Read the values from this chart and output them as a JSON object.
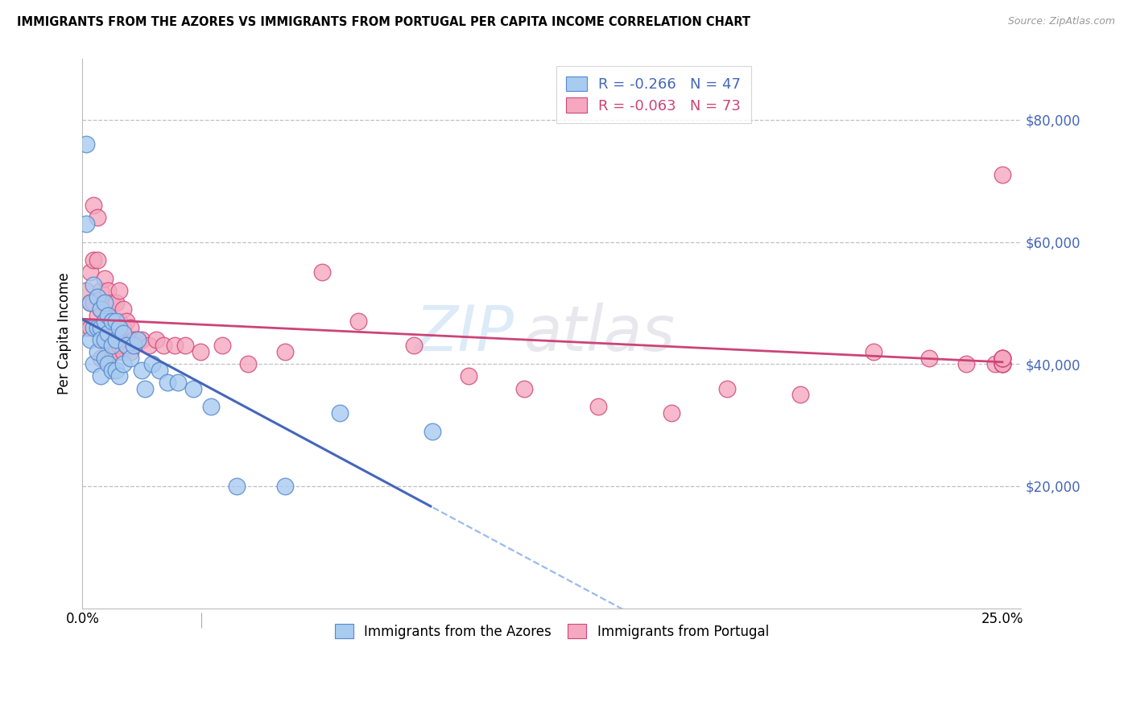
{
  "title": "IMMIGRANTS FROM THE AZORES VS IMMIGRANTS FROM PORTUGAL PER CAPITA INCOME CORRELATION CHART",
  "source": "Source: ZipAtlas.com",
  "ylabel": "Per Capita Income",
  "xlim": [
    0.0,
    0.255
  ],
  "ylim": [
    0,
    90000
  ],
  "yticks": [
    20000,
    40000,
    60000,
    80000
  ],
  "ytick_labels": [
    "$20,000",
    "$40,000",
    "$60,000",
    "$80,000"
  ],
  "xtick_positions": [
    0.0,
    0.05,
    0.1,
    0.15,
    0.2,
    0.25
  ],
  "xtick_labels": [
    "0.0%",
    "",
    "",
    "",
    "",
    "25.0%"
  ],
  "legend1_label": "R = -0.266   N = 47",
  "legend2_label": "R = -0.063   N = 73",
  "color_azores": "#A8CBF0",
  "color_portugal": "#F5A8C0",
  "edge_color_azores": "#5588CC",
  "edge_color_portugal": "#D04878",
  "line_color_azores": "#4466BB",
  "line_color_portugal": "#CC4477",
  "dashed_color": "#99BBEE",
  "watermark_zip": "ZIP",
  "watermark_atlas": "atlas",
  "azores_x": [
    0.001,
    0.001,
    0.002,
    0.002,
    0.003,
    0.003,
    0.003,
    0.004,
    0.004,
    0.004,
    0.005,
    0.005,
    0.005,
    0.005,
    0.006,
    0.006,
    0.006,
    0.006,
    0.007,
    0.007,
    0.007,
    0.008,
    0.008,
    0.008,
    0.009,
    0.009,
    0.009,
    0.01,
    0.01,
    0.011,
    0.011,
    0.012,
    0.013,
    0.014,
    0.015,
    0.016,
    0.017,
    0.019,
    0.021,
    0.023,
    0.026,
    0.03,
    0.035,
    0.042,
    0.055,
    0.07,
    0.095
  ],
  "azores_y": [
    76000,
    63000,
    50000,
    44000,
    53000,
    46000,
    40000,
    51000,
    46000,
    42000,
    49000,
    46000,
    44000,
    38000,
    50000,
    47000,
    44000,
    41000,
    48000,
    45000,
    40000,
    47000,
    43000,
    39000,
    47000,
    44000,
    39000,
    46000,
    38000,
    45000,
    40000,
    43000,
    41000,
    43000,
    44000,
    39000,
    36000,
    40000,
    39000,
    37000,
    37000,
    36000,
    33000,
    20000,
    20000,
    32000,
    29000
  ],
  "portugal_x": [
    0.001,
    0.001,
    0.002,
    0.002,
    0.002,
    0.003,
    0.003,
    0.003,
    0.004,
    0.004,
    0.004,
    0.005,
    0.005,
    0.005,
    0.005,
    0.006,
    0.006,
    0.006,
    0.006,
    0.007,
    0.007,
    0.007,
    0.007,
    0.008,
    0.008,
    0.008,
    0.009,
    0.009,
    0.009,
    0.01,
    0.01,
    0.01,
    0.011,
    0.011,
    0.011,
    0.012,
    0.012,
    0.013,
    0.013,
    0.014,
    0.015,
    0.016,
    0.018,
    0.02,
    0.022,
    0.025,
    0.028,
    0.032,
    0.038,
    0.045,
    0.055,
    0.065,
    0.075,
    0.09,
    0.105,
    0.12,
    0.14,
    0.16,
    0.175,
    0.195,
    0.215,
    0.23,
    0.24,
    0.248,
    0.25,
    0.25,
    0.25,
    0.25,
    0.25,
    0.25,
    0.25,
    0.25,
    0.25
  ],
  "portugal_y": [
    52000,
    46000,
    55000,
    50000,
    46000,
    66000,
    57000,
    50000,
    64000,
    57000,
    48000,
    52000,
    49000,
    46000,
    41000,
    54000,
    50000,
    47000,
    44000,
    52000,
    48000,
    44000,
    41000,
    50000,
    46000,
    42000,
    50000,
    46000,
    42000,
    52000,
    47000,
    43000,
    49000,
    46000,
    42000,
    47000,
    43000,
    46000,
    42000,
    44000,
    44000,
    44000,
    43000,
    44000,
    43000,
    43000,
    43000,
    42000,
    43000,
    40000,
    42000,
    55000,
    47000,
    43000,
    38000,
    36000,
    33000,
    32000,
    36000,
    35000,
    42000,
    41000,
    40000,
    40000,
    40000,
    40000,
    40000,
    40000,
    71000,
    41000,
    41000,
    41000,
    41000
  ]
}
